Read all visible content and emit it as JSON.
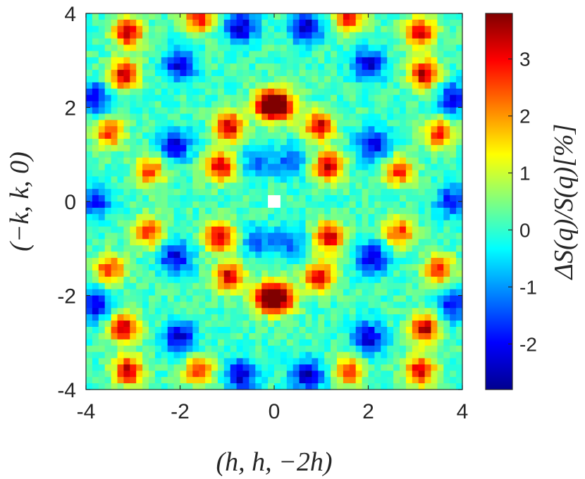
{
  "chart_data": {
    "type": "heatmap",
    "title": "",
    "xlabel": "(h, h, −2h)",
    "ylabel": "(−k, k, 0)",
    "colorbar_label": "ΔS(q)/S(q)[%]",
    "xlim": [
      -4,
      4
    ],
    "ylim": [
      -4,
      4
    ],
    "x_ticks": [
      -4,
      -2,
      0,
      2,
      4
    ],
    "x_tick_labels": [
      "-4",
      "-2",
      "0",
      "2",
      "4"
    ],
    "y_ticks": [
      -4,
      -2,
      0,
      2,
      4
    ],
    "y_tick_labels": [
      "-4",
      "-2",
      "0",
      "2",
      "4"
    ],
    "color_range": [
      -2.8,
      3.8
    ],
    "colorbar_ticks": [
      -2,
      -1,
      0,
      1,
      2,
      3
    ],
    "colorbar_tick_labels": [
      "-2",
      "-1",
      "0",
      "1",
      "2",
      "3"
    ],
    "colormap": "jet",
    "grid": false,
    "grid_resolution": 60,
    "masked_point": [
      0,
      0
    ],
    "peaks": [
      {
        "x": 0.15,
        "y": 2.05,
        "value": 3.4
      },
      {
        "x": -0.15,
        "y": 2.05,
        "value": 3.4
      },
      {
        "x": 0.15,
        "y": -2.05,
        "value": 3.4
      },
      {
        "x": -0.15,
        "y": -2.05,
        "value": 3.4
      },
      {
        "x": -0.95,
        "y": 1.6,
        "value": 3.2
      },
      {
        "x": -1.15,
        "y": 0.75,
        "value": 3.3
      },
      {
        "x": 0.95,
        "y": 1.6,
        "value": 3.2
      },
      {
        "x": 1.15,
        "y": 0.75,
        "value": 3.3
      },
      {
        "x": -0.95,
        "y": -1.6,
        "value": 3.2
      },
      {
        "x": -1.15,
        "y": -0.75,
        "value": 3.3
      },
      {
        "x": 0.95,
        "y": -1.6,
        "value": 3.2
      },
      {
        "x": 1.15,
        "y": -0.75,
        "value": 3.3
      },
      {
        "x": -3.1,
        "y": 3.6,
        "value": 3.3
      },
      {
        "x": -3.2,
        "y": 2.7,
        "value": 3.4
      },
      {
        "x": 3.1,
        "y": 3.6,
        "value": 3.3
      },
      {
        "x": 3.2,
        "y": 2.7,
        "value": 3.4
      },
      {
        "x": -3.1,
        "y": -3.6,
        "value": 3.3
      },
      {
        "x": -3.2,
        "y": -2.7,
        "value": 3.4
      },
      {
        "x": 3.1,
        "y": -3.6,
        "value": 3.3
      },
      {
        "x": 3.2,
        "y": -2.7,
        "value": 3.4
      },
      {
        "x": -1.6,
        "y": 3.9,
        "value": 2.8
      },
      {
        "x": 1.6,
        "y": 3.9,
        "value": 2.8
      },
      {
        "x": -1.6,
        "y": -3.6,
        "value": 2.6
      },
      {
        "x": 1.6,
        "y": -3.6,
        "value": 2.6
      },
      {
        "x": -3.5,
        "y": 1.45,
        "value": 2.6
      },
      {
        "x": -2.65,
        "y": 0.65,
        "value": 2.6
      },
      {
        "x": 3.5,
        "y": 1.45,
        "value": 2.6
      },
      {
        "x": 2.65,
        "y": 0.65,
        "value": 2.6
      },
      {
        "x": -3.5,
        "y": -1.45,
        "value": 2.6
      },
      {
        "x": -2.65,
        "y": -0.65,
        "value": 2.6
      },
      {
        "x": 3.5,
        "y": -1.45,
        "value": 2.6
      },
      {
        "x": 2.65,
        "y": -0.65,
        "value": 2.6
      }
    ],
    "troughs": [
      {
        "x": -0.7,
        "y": 3.7,
        "value": -2.5
      },
      {
        "x": 0.7,
        "y": 3.7,
        "value": -2.5
      },
      {
        "x": -0.7,
        "y": -3.7,
        "value": -2.5
      },
      {
        "x": 0.7,
        "y": -3.7,
        "value": -2.5
      },
      {
        "x": -2.0,
        "y": 2.9,
        "value": -2.4
      },
      {
        "x": 2.0,
        "y": 2.9,
        "value": -2.4
      },
      {
        "x": -2.0,
        "y": -2.9,
        "value": -2.4
      },
      {
        "x": 2.0,
        "y": -2.9,
        "value": -2.4
      },
      {
        "x": -2.1,
        "y": 1.2,
        "value": -2.3
      },
      {
        "x": 2.1,
        "y": 1.2,
        "value": -2.3
      },
      {
        "x": -2.1,
        "y": -1.2,
        "value": -2.3
      },
      {
        "x": 2.1,
        "y": -1.2,
        "value": -2.3
      },
      {
        "x": -3.8,
        "y": 2.2,
        "value": -2.2
      },
      {
        "x": 3.8,
        "y": 2.2,
        "value": -2.2
      },
      {
        "x": -3.8,
        "y": -2.2,
        "value": -2.2
      },
      {
        "x": 3.8,
        "y": -2.2,
        "value": -2.2
      },
      {
        "x": -3.8,
        "y": 0.0,
        "value": -2.0
      },
      {
        "x": 3.8,
        "y": 0.0,
        "value": -2.0
      },
      {
        "x": -0.35,
        "y": 0.85,
        "value": -1.4
      },
      {
        "x": 0.35,
        "y": 0.85,
        "value": -1.4
      },
      {
        "x": -0.35,
        "y": -0.85,
        "value": -1.4
      },
      {
        "x": 0.35,
        "y": -0.85,
        "value": -1.4
      }
    ]
  }
}
